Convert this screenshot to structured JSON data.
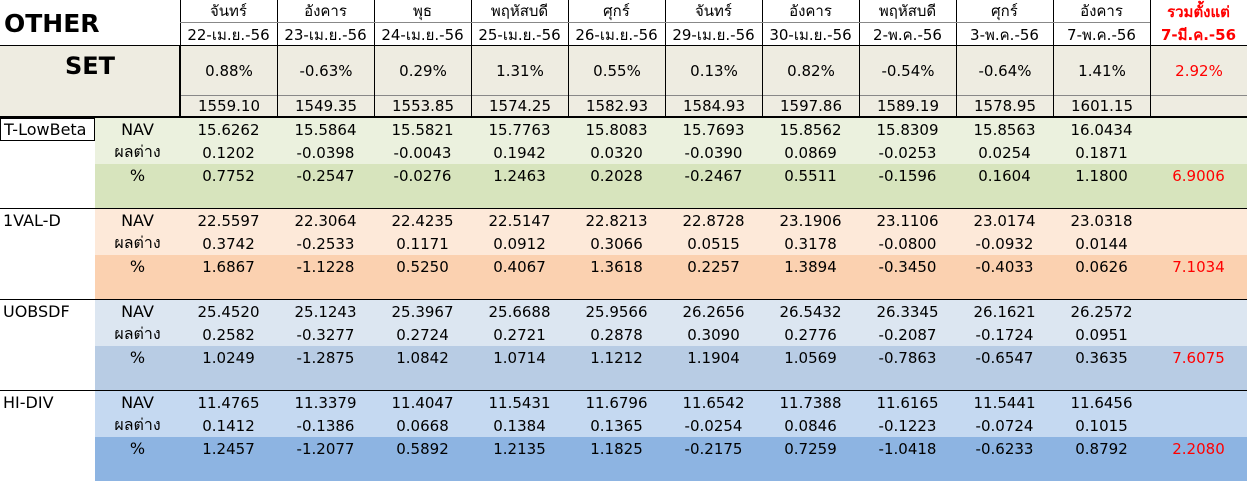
{
  "header": {
    "title": "OTHER",
    "columns": [
      {
        "day": "จันทร์",
        "date": "22-เม.ย.-56"
      },
      {
        "day": "อังคาร",
        "date": "23-เม.ย.-56"
      },
      {
        "day": "พุธ",
        "date": "24-เม.ย.-56"
      },
      {
        "day": "พฤหัสบดี",
        "date": "25-เม.ย.-56"
      },
      {
        "day": "ศุกร์",
        "date": "26-เม.ย.-56"
      },
      {
        "day": "จันทร์",
        "date": "29-เม.ย.-56"
      },
      {
        "day": "อังคาร",
        "date": "30-เม.ย.-56"
      },
      {
        "day": "พฤหัสบดี",
        "date": "2-พ.ค.-56"
      },
      {
        "day": "ศุกร์",
        "date": "3-พ.ค.-56"
      },
      {
        "day": "อังคาร",
        "date": "7-พ.ค.-56"
      }
    ],
    "total": {
      "line1": "รวมตั้งแต่",
      "line2": "7-มี.ค.-56"
    }
  },
  "set": {
    "label": "SET",
    "change": [
      "0.88%",
      "-0.63%",
      "0.29%",
      "1.31%",
      "0.55%",
      "0.13%",
      "0.82%",
      "-0.54%",
      "-0.64%",
      "1.41%"
    ],
    "change_total": "2.92%",
    "index": [
      "1559.10",
      "1549.35",
      "1553.85",
      "1574.25",
      "1582.93",
      "1584.93",
      "1597.86",
      "1589.19",
      "1578.95",
      "1601.15"
    ]
  },
  "funds": [
    {
      "name": "T-LowBeta",
      "rows": [
        {
          "label": "NAV",
          "values": [
            "15.6262",
            "15.5864",
            "15.5821",
            "15.7763",
            "15.8083",
            "15.7693",
            "15.8562",
            "15.8309",
            "15.8563",
            "16.0434"
          ]
        },
        {
          "label": "ผลต่าง",
          "values": [
            "0.1202",
            "-0.0398",
            "-0.0043",
            "0.1942",
            "0.0320",
            "-0.0390",
            "0.0869",
            "-0.0253",
            "0.0254",
            "0.1871"
          ]
        },
        {
          "label": "%",
          "values": [
            "0.7752",
            "-0.2547",
            "-0.0276",
            "1.2463",
            "0.2028",
            "-0.2467",
            "0.5511",
            "-0.1596",
            "0.1604",
            "1.1800"
          ],
          "total": "6.9006"
        }
      ]
    },
    {
      "name": "1VAL-D",
      "rows": [
        {
          "label": "NAV",
          "values": [
            "22.5597",
            "22.3064",
            "22.4235",
            "22.5147",
            "22.8213",
            "22.8728",
            "23.1906",
            "23.1106",
            "23.0174",
            "23.0318"
          ]
        },
        {
          "label": "ผลต่าง",
          "values": [
            "0.3742",
            "-0.2533",
            "0.1171",
            "0.0912",
            "0.3066",
            "0.0515",
            "0.3178",
            "-0.0800",
            "-0.0932",
            "0.0144"
          ]
        },
        {
          "label": "%",
          "values": [
            "1.6867",
            "-1.1228",
            "0.5250",
            "0.4067",
            "1.3618",
            "0.2257",
            "1.3894",
            "-0.3450",
            "-0.4033",
            "0.0626"
          ],
          "total": "7.1034"
        }
      ]
    },
    {
      "name": "UOBSDF",
      "rows": [
        {
          "label": "NAV",
          "values": [
            "25.4520",
            "25.1243",
            "25.3967",
            "25.6688",
            "25.9566",
            "26.2656",
            "26.5432",
            "26.3345",
            "26.1621",
            "26.2572"
          ]
        },
        {
          "label": "ผลต่าง",
          "values": [
            "0.2582",
            "-0.3277",
            "0.2724",
            "0.2721",
            "0.2878",
            "0.3090",
            "0.2776",
            "-0.2087",
            "-0.1724",
            "0.0951"
          ]
        },
        {
          "label": "%",
          "values": [
            "1.0249",
            "-1.2875",
            "1.0842",
            "1.0714",
            "1.1212",
            "1.1904",
            "1.0569",
            "-0.7863",
            "-0.6547",
            "0.3635"
          ],
          "total": "7.6075"
        }
      ]
    },
    {
      "name": "HI-DIV",
      "rows": [
        {
          "label": "NAV",
          "values": [
            "11.4765",
            "11.3379",
            "11.4047",
            "11.5431",
            "11.6796",
            "11.6542",
            "11.7388",
            "11.6165",
            "11.5441",
            "11.6456"
          ]
        },
        {
          "label": "ผลต่าง",
          "values": [
            "0.1412",
            "-0.1386",
            "0.0668",
            "0.1384",
            "0.1365",
            "-0.0254",
            "0.0846",
            "-0.1223",
            "-0.0724",
            "0.1015"
          ]
        },
        {
          "label": "%",
          "values": [
            "1.2457",
            "-1.2077",
            "0.5892",
            "1.2135",
            "1.1825",
            "-0.2175",
            "0.7259",
            "-1.0418",
            "-0.6233",
            "0.8792"
          ],
          "total": "2.2080"
        }
      ]
    }
  ]
}
